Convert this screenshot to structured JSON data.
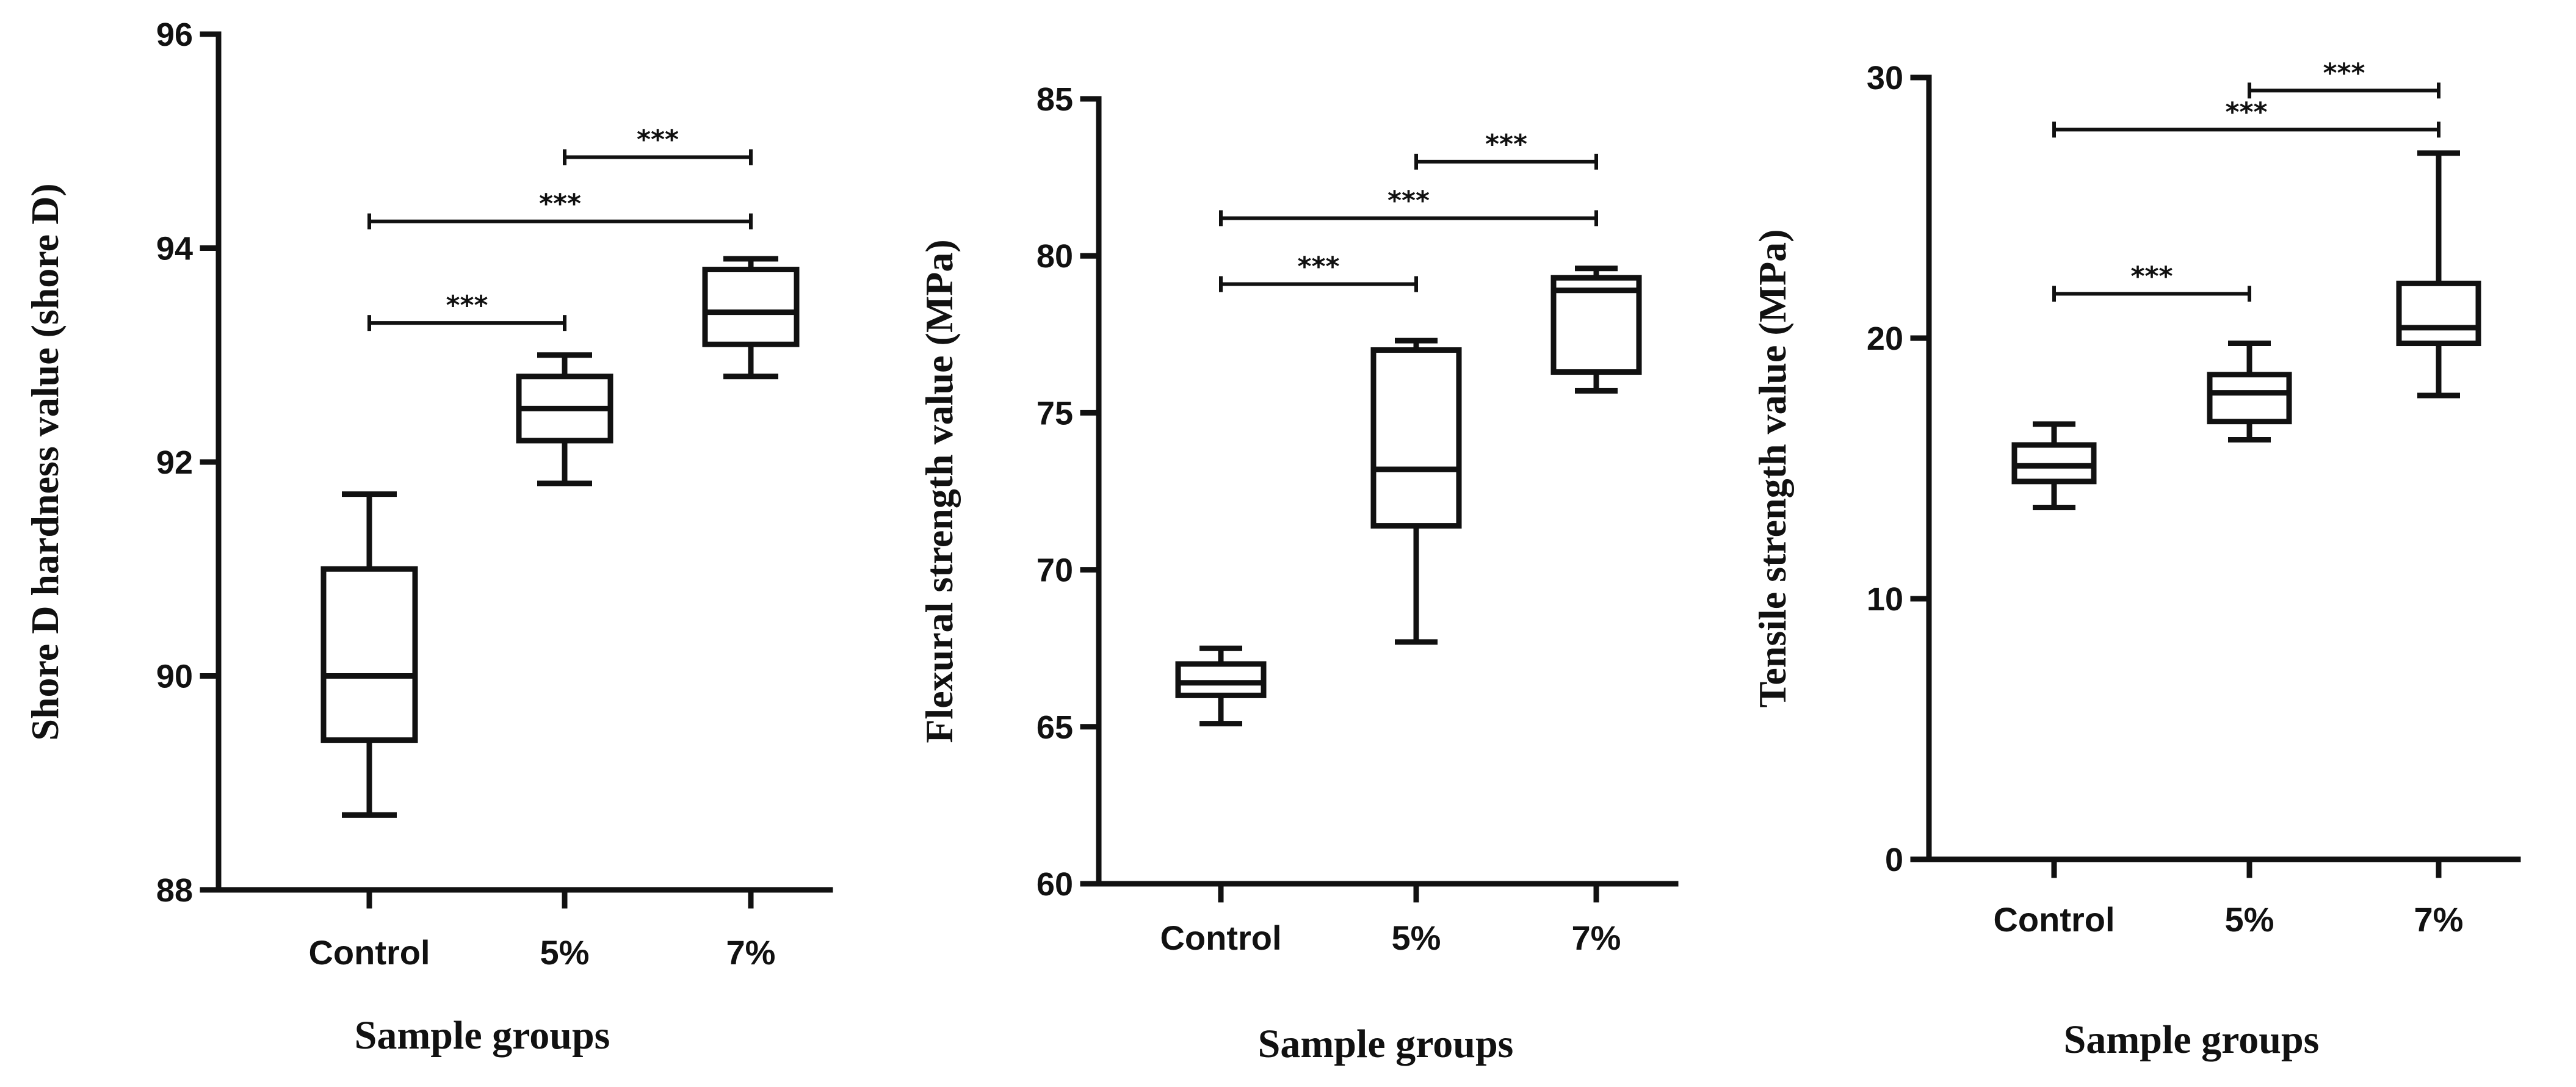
{
  "chart_data": [
    {
      "type": "box",
      "id": "hardness",
      "ylabel": "Shore D hardness value (shore D)",
      "xlabel": "Sample groups",
      "ylim": [
        88,
        96
      ],
      "yticks": [
        88,
        90,
        92,
        94,
        96
      ],
      "categories": [
        "Control",
        "5%",
        "7%"
      ],
      "boxes": [
        {
          "min": 88.7,
          "q1": 89.4,
          "median": 90.0,
          "q3": 91.0,
          "max": 91.7
        },
        {
          "min": 91.8,
          "q1": 92.2,
          "median": 92.5,
          "q3": 92.8,
          "max": 93.0
        },
        {
          "min": 92.8,
          "q1": 93.1,
          "median": 93.4,
          "q3": 93.8,
          "max": 93.9
        }
      ],
      "significance": [
        {
          "from": 0,
          "to": 1,
          "y": 93.3,
          "label": "***"
        },
        {
          "from": 0,
          "to": 2,
          "y": 94.25,
          "label": "***"
        },
        {
          "from": 1,
          "to": 2,
          "y": 94.85,
          "label": "***"
        }
      ]
    },
    {
      "type": "box",
      "id": "flexural",
      "ylabel": "Flexural strength value (MPa)",
      "xlabel": "Sample groups",
      "ylim": [
        60,
        85
      ],
      "yticks": [
        60,
        65,
        70,
        75,
        80,
        85
      ],
      "categories": [
        "Control",
        "5%",
        "7%"
      ],
      "boxes": [
        {
          "min": 65.1,
          "q1": 66.0,
          "median": 66.4,
          "q3": 67.0,
          "max": 67.5
        },
        {
          "min": 67.7,
          "q1": 71.4,
          "median": 73.2,
          "q3": 77.0,
          "max": 77.3
        },
        {
          "min": 75.7,
          "q1": 76.3,
          "median": 78.9,
          "q3": 79.3,
          "max": 79.6
        }
      ],
      "significance": [
        {
          "from": 0,
          "to": 1,
          "y": 79.1,
          "label": "***"
        },
        {
          "from": 0,
          "to": 2,
          "y": 81.2,
          "label": "***"
        },
        {
          "from": 1,
          "to": 2,
          "y": 83.0,
          "label": "***"
        }
      ]
    },
    {
      "type": "box",
      "id": "tensile",
      "ylabel": "Tensile strength value (MPa)",
      "xlabel": "Sample groups",
      "ylim": [
        0,
        30
      ],
      "yticks": [
        0,
        10,
        20,
        30
      ],
      "categories": [
        "Control",
        "5%",
        "7%"
      ],
      "boxes": [
        {
          "min": 13.5,
          "q1": 14.5,
          "median": 15.1,
          "q3": 15.9,
          "max": 16.7
        },
        {
          "min": 16.1,
          "q1": 16.8,
          "median": 17.9,
          "q3": 18.6,
          "max": 19.8
        },
        {
          "min": 17.8,
          "q1": 19.8,
          "median": 20.4,
          "q3": 22.1,
          "max": 27.1
        }
      ],
      "significance": [
        {
          "from": 0,
          "to": 1,
          "y": 21.7,
          "label": "***"
        },
        {
          "from": 0,
          "to": 2,
          "y": 28.0,
          "label": "***"
        },
        {
          "from": 1,
          "to": 2,
          "y": 29.5,
          "label": "***"
        }
      ]
    }
  ]
}
